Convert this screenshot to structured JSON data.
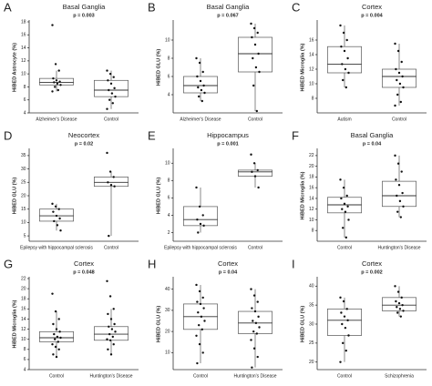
{
  "chart_data": [
    {
      "type": "box",
      "panel": "A",
      "title": "Basal Ganglia",
      "subtitle": "p = 0.003",
      "ylabel": "HiBED Astrocyte (%)",
      "categories": [
        "Alzheimer's Disease",
        "Control"
      ],
      "boxes": [
        {
          "min": 7.3,
          "q1": 8.3,
          "median": 8.7,
          "q3": 9.3,
          "max": 10.5
        },
        {
          "min": 4.6,
          "q1": 6.5,
          "median": 7.5,
          "q3": 9,
          "max": 10.5
        }
      ],
      "points": [
        [
          17.5,
          11.5,
          10.5,
          9.3,
          9,
          8.8,
          8.7,
          8.5,
          8.3,
          8,
          7.5,
          7.3
        ],
        [
          10.5,
          10,
          9.5,
          9,
          8.5,
          7.8,
          7.5,
          7,
          6.5,
          6,
          5.5,
          4.6
        ]
      ],
      "ylim": [
        4,
        18
      ],
      "yticks": [
        4,
        6,
        8,
        10,
        12,
        14,
        16,
        18
      ]
    },
    {
      "type": "box",
      "panel": "B",
      "title": "Basal Ganglia",
      "subtitle": "p = 0.067",
      "ylabel": "HiBED GLU (%)",
      "categories": [
        "Alzheimer's Disease",
        "Control"
      ],
      "boxes": [
        {
          "min": 3.3,
          "q1": 4.2,
          "median": 5,
          "q3": 6,
          "max": 8
        },
        {
          "min": 2.2,
          "q1": 6.5,
          "median": 8.5,
          "q3": 10.3,
          "max": 11.8
        }
      ],
      "points": [
        [
          8,
          7.5,
          6.5,
          6,
          5.5,
          5,
          4.8,
          4.5,
          4.2,
          3.8,
          3.3
        ],
        [
          11.8,
          11.3,
          10.8,
          10.3,
          9.5,
          8.5,
          8,
          7,
          6.5,
          5,
          2.2
        ]
      ],
      "ylim": [
        2,
        12
      ],
      "yticks": [
        4,
        6,
        8,
        10
      ]
    },
    {
      "type": "box",
      "panel": "C",
      "title": "Cortex",
      "subtitle": "p = 0.004",
      "ylabel": "HiBED Microglia (%)",
      "categories": [
        "Autism",
        "Control"
      ],
      "boxes": [
        {
          "min": 9.5,
          "q1": 11.5,
          "median": 12.7,
          "q3": 15.1,
          "max": 18
        },
        {
          "min": 7,
          "q1": 9.5,
          "median": 11,
          "q3": 12,
          "max": 15.5
        }
      ],
      "points": [
        [
          18,
          17,
          16,
          15.1,
          14.5,
          13.5,
          12.7,
          12,
          11.5,
          10.5,
          9.5
        ],
        [
          15.5,
          14.5,
          13,
          12,
          11.5,
          11,
          10.5,
          10,
          9.5,
          8.5,
          7.5,
          7
        ]
      ],
      "ylim": [
        6,
        18.5
      ],
      "yticks": [
        8,
        10,
        12,
        14,
        16
      ]
    },
    {
      "type": "box",
      "panel": "D",
      "title": "Neocortex",
      "subtitle": "p = 0.02",
      "ylabel": "HiBED GLU (%)",
      "categories": [
        "Epilepsy with hippocampal sclerosis",
        "Control"
      ],
      "boxes": [
        {
          "min": 7,
          "q1": 10.5,
          "median": 12.5,
          "q3": 15,
          "max": 17
        },
        {
          "min": 5,
          "q1": 23.5,
          "median": 25,
          "q3": 27,
          "max": 29
        }
      ],
      "points": [
        [
          17,
          16,
          15,
          14,
          12.5,
          11.5,
          10.5,
          9,
          7
        ],
        [
          36,
          29,
          27,
          25,
          24,
          23.5,
          5
        ]
      ],
      "ylim": [
        3,
        37
      ],
      "yticks": [
        5,
        10,
        15,
        20,
        25,
        30,
        35
      ]
    },
    {
      "type": "box",
      "panel": "E",
      "title": "Hippocampus",
      "subtitle": "p = 0.001",
      "ylabel": "HiBED GLU (%)",
      "categories": [
        "Epilepsy with hippocampal sclerosis",
        "Control"
      ],
      "boxes": [
        {
          "min": 2,
          "q1": 2.8,
          "median": 3.5,
          "q3": 5,
          "max": 7.2
        },
        {
          "min": 7.2,
          "q1": 8.5,
          "median": 9,
          "q3": 9.2,
          "max": 10
        }
      ],
      "points": [
        [
          7.2,
          5,
          4,
          3.5,
          3,
          2.8,
          2
        ],
        [
          11,
          10,
          9.2,
          9,
          8.5,
          7.2
        ]
      ],
      "ylim": [
        1,
        11.5
      ],
      "yticks": [
        2,
        4,
        6,
        8,
        10
      ]
    },
    {
      "type": "box",
      "panel": "F",
      "title": "Basal Ganglia",
      "subtitle": "p = 0.04",
      "ylabel": "HiBED Microglia (%)",
      "categories": [
        "Control",
        "Huntington's Disease"
      ],
      "boxes": [
        {
          "min": 6.7,
          "q1": 11.3,
          "median": 12.8,
          "q3": 14.2,
          "max": 17.5
        },
        {
          "min": 10.5,
          "q1": 12.5,
          "median": 14.5,
          "q3": 17.2,
          "max": 22
        }
      ],
      "points": [
        [
          17.5,
          16,
          14.5,
          14,
          13,
          12.5,
          12,
          11.5,
          10,
          8.5,
          6.7
        ],
        [
          22,
          20.5,
          19,
          17.5,
          16.5,
          15,
          14.5,
          13.5,
          12.5,
          11.5,
          10.5
        ]
      ],
      "ylim": [
        6,
        23
      ],
      "yticks": [
        8,
        10,
        12,
        14,
        16,
        18,
        20,
        22
      ]
    },
    {
      "type": "box",
      "panel": "G",
      "title": "Cortex",
      "subtitle": "p = 0.048",
      "ylabel": "HiBED Microglia (%)",
      "categories": [
        "Control",
        "Huntington's Disease"
      ],
      "boxes": [
        {
          "min": 6.5,
          "q1": 9.5,
          "median": 10.3,
          "q3": 11.5,
          "max": 15.5
        },
        {
          "min": 7,
          "q1": 9.8,
          "median": 11,
          "q3": 12.5,
          "max": 16
        }
      ],
      "points": [
        [
          19,
          15.5,
          14,
          13,
          12,
          11.5,
          11,
          10.5,
          10.3,
          10,
          9.5,
          9,
          8.5,
          8,
          7,
          6.5
        ],
        [
          21.5,
          18.5,
          16,
          15,
          14,
          13,
          12.5,
          12,
          11.5,
          11,
          10.5,
          10,
          9.8,
          9,
          8,
          7
        ]
      ],
      "ylim": [
        4,
        22
      ],
      "yticks": [
        4,
        6,
        8,
        10,
        12,
        14,
        16,
        18,
        20,
        22
      ]
    },
    {
      "type": "box",
      "panel": "H",
      "title": "Cortex",
      "subtitle": "p = 0.04",
      "ylabel": "HiBED GLU (%)",
      "categories": [
        "Control",
        "Huntington's Disease"
      ],
      "boxes": [
        {
          "min": 5,
          "q1": 21,
          "median": 27,
          "q3": 33,
          "max": 42
        },
        {
          "min": 3,
          "q1": 19,
          "median": 24,
          "q3": 29.5,
          "max": 40
        }
      ],
      "points": [
        [
          42,
          39,
          36,
          34,
          33,
          31,
          29,
          27,
          25,
          23,
          21,
          18,
          14,
          10,
          5
        ],
        [
          40,
          37,
          34,
          31,
          29.5,
          27,
          25,
          24,
          22,
          20,
          19,
          16,
          12,
          8,
          3
        ]
      ],
      "ylim": [
        2,
        45
      ],
      "yticks": [
        10,
        20,
        30,
        40
      ]
    },
    {
      "type": "box",
      "panel": "I",
      "title": "Cortex",
      "subtitle": "p = 0.002",
      "ylabel": "HiBED GLU (%)",
      "categories": [
        "Control",
        "Schizophrenia"
      ],
      "boxes": [
        {
          "min": 20,
          "q1": 27,
          "median": 31,
          "q3": 34,
          "max": 37
        },
        {
          "min": 32,
          "q1": 33.5,
          "median": 35,
          "q3": 37,
          "max": 40
        }
      ],
      "points": [
        [
          37,
          36,
          34,
          33,
          32,
          31,
          30,
          29,
          27,
          25,
          23,
          20
        ],
        [
          40,
          38.5,
          37,
          36,
          35.5,
          35,
          34.5,
          34,
          33.5,
          33,
          32
        ]
      ],
      "ylim": [
        18,
        42
      ],
      "yticks": [
        20,
        25,
        30,
        35,
        40
      ]
    }
  ]
}
